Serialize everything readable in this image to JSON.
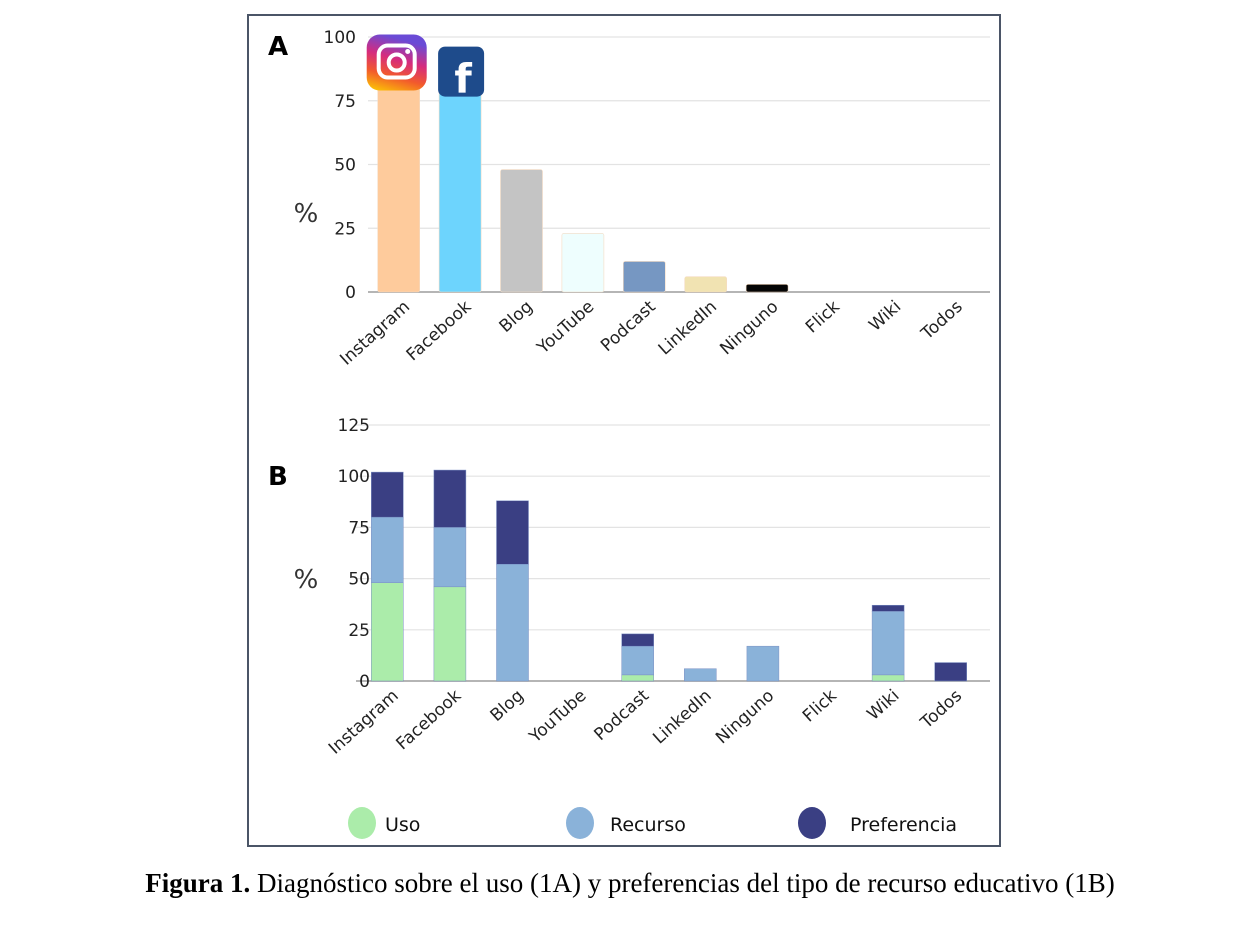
{
  "caption": {
    "bold": "Figura 1.",
    "text": " Diagnóstico sobre el uso (1A) y preferencias del tipo de recurso educativo (1B)"
  },
  "chart_data": [
    {
      "type": "bar",
      "panel_label": "A",
      "title": "",
      "xlabel": "",
      "ylabel": "%",
      "ylim": [
        0,
        100
      ],
      "yticks": [
        0,
        25,
        50,
        75,
        100
      ],
      "grid": true,
      "categories": [
        "Instagram",
        "Facebook",
        "Blog",
        "YouTube",
        "Podcast",
        "LinkedIn",
        "Ninguno",
        "Flick",
        "Wiki",
        "Todos"
      ],
      "values": [
        90,
        88,
        48,
        23,
        12,
        6,
        3,
        0,
        0,
        0
      ],
      "bar_colors": [
        "#fecb9c",
        "#6dd4fd",
        "#c4c4c4",
        "#eefefe",
        "#7697c2",
        "#f1e3b2",
        "#050505",
        "#cccccc",
        "#cccccc",
        "#cccccc"
      ],
      "icons": [
        {
          "category": "Instagram",
          "name": "instagram-logo"
        },
        {
          "category": "Facebook",
          "name": "facebook-logo"
        }
      ]
    },
    {
      "type": "bar",
      "stacked": true,
      "panel_label": "B",
      "title": "",
      "xlabel": "",
      "ylabel": "%",
      "ylim": [
        0,
        125
      ],
      "yticks": [
        0,
        25,
        50,
        75,
        100,
        125
      ],
      "grid": true,
      "categories": [
        "Instagram",
        "Facebook",
        "Blog",
        "YouTube",
        "Podcast",
        "LinkedIn",
        "Ninguno",
        "Flick",
        "Wiki",
        "Todos"
      ],
      "series": [
        {
          "name": "Uso",
          "color": "#abecaa",
          "values": [
            48,
            46,
            0,
            0,
            3,
            0,
            0,
            0,
            3,
            0
          ]
        },
        {
          "name": "Recurso",
          "color": "#8ab2d9",
          "values": [
            32,
            29,
            57,
            0,
            14,
            6,
            17,
            0,
            31,
            0
          ]
        },
        {
          "name": "Preferencia",
          "color": "#3a3f83",
          "values": [
            22,
            28,
            31,
            0,
            6,
            0,
            0,
            0,
            3,
            9
          ]
        }
      ],
      "legend": {
        "position": "bottom",
        "entries": [
          "Uso",
          "Recurso",
          "Preferencia"
        ]
      }
    }
  ]
}
